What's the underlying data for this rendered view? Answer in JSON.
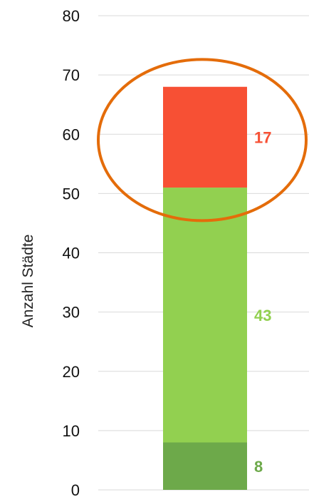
{
  "chart_data": {
    "type": "bar",
    "stacked": true,
    "categories": [
      ""
    ],
    "series": [
      {
        "values": [
          8
        ],
        "color": "#6da94a"
      },
      {
        "values": [
          43
        ],
        "color": "#92d050"
      },
      {
        "values": [
          17
        ],
        "color": "#f75034"
      }
    ],
    "data_labels": [
      {
        "text": "8",
        "color": "#6da94a"
      },
      {
        "text": "43",
        "color": "#92d050"
      },
      {
        "text": "17",
        "color": "#f75034"
      }
    ],
    "ylabel": "Anzahl Städte",
    "xlabel": "",
    "title": "",
    "ylim": [
      0,
      80
    ],
    "yticks": [
      0,
      10,
      20,
      30,
      40,
      50,
      60,
      70,
      80
    ],
    "grid": true,
    "gridline_color": "#d9d9d9",
    "annotation": {
      "shape": "ellipse",
      "color": "#e46c0a",
      "highlights": "top segment (17)"
    }
  }
}
